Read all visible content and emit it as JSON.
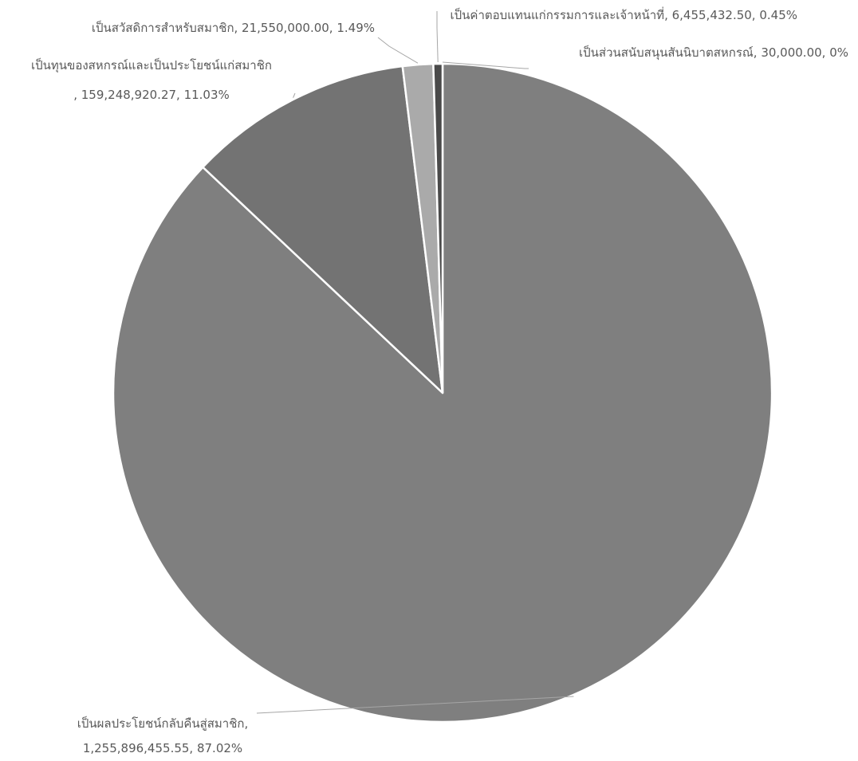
{
  "chart_data": {
    "type": "pie",
    "title": "",
    "start_angle_deg": 0,
    "direction": "clockwise",
    "slice_border_color": "#ffffff",
    "leader_line_color": "#a6a6a6",
    "label_color": "#595959",
    "slices": [
      {
        "key": "support",
        "label": "เป็นส่วนสนับสนุนสันนิบาตสหกรณ์",
        "value": 30000.0,
        "value_text": "30,000.00",
        "percent_text": "0%",
        "color": "#303030",
        "label_lines": [
          "เป็นส่วนสนับสนุนสันนิบาตสหกรณ์, 30,000.00, 0%"
        ]
      },
      {
        "key": "dividend",
        "label": "เป็นผลประโยชน์กลับคืนสู่สมาชิก",
        "value": 1255896455.55,
        "value_text": "1,255,896,455.55",
        "percent_text": "87.02%",
        "color": "#7f7f7f",
        "label_lines": [
          "เป็นผลประโยชน์กลับคืนสู่สมาชิก,",
          "1,255,896,455.55, 87.02%"
        ]
      },
      {
        "key": "capital",
        "label": "เป็นทุนของสหกรณ์และเป็นประโยชน์แก่สมาชิก",
        "value": 159248920.27,
        "value_text": "159,248,920.27",
        "percent_text": "11.03%",
        "color": "#737373",
        "label_lines": [
          "เป็นทุนของสหกรณ์และเป็นประโยชน์แก่สมาชิก",
          ", 159,248,920.27, 11.03%"
        ]
      },
      {
        "key": "welfare",
        "label": "เป็นสวัสดิการสำหรับสมาชิก",
        "value": 21550000.0,
        "value_text": "21,550,000.00",
        "percent_text": "1.49%",
        "color": "#aaaaaa",
        "label_lines": [
          "เป็นสวัสดิการสำหรับสมาชิก, 21,550,000.00, 1.49%"
        ]
      },
      {
        "key": "compensation",
        "label": "เป็นค่าตอบแทนแก่กรรมการและเจ้าหน้าที่",
        "value": 6455432.5,
        "value_text": "6,455,432.50",
        "percent_text": "0.45%",
        "color": "#4a4a4a",
        "label_lines": [
          "เป็นค่าตอบแทนแก่กรรมการและเจ้าหน้าที่, 6,455,432.50, 0.45%"
        ]
      }
    ]
  }
}
